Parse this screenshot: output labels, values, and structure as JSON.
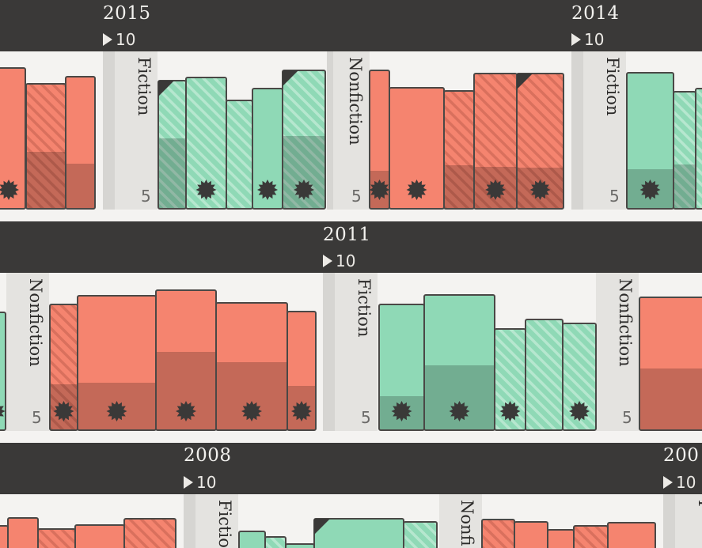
{
  "colors": {
    "fiction": "#8fd9b6",
    "fiction_dark": "#6faa90",
    "nonfiction": "#f5846f",
    "nonfiction_dark": "#c4695b",
    "stroke": "#4a4846",
    "band": "#3a3938",
    "shelf": "#e4e3e0"
  },
  "chart_data": {
    "type": "bar",
    "scale_label": "10",
    "tick_label": "5",
    "rows": [
      {
        "years": [
          {
            "label": "2015",
            "ten": "10"
          },
          {
            "label": "2014",
            "ten": "10"
          }
        ],
        "shelves": [
          {
            "genre": "",
            "tick": ""
          },
          {
            "genre": "Fiction",
            "tick": "5"
          },
          {
            "genre": "Nonfiction",
            "tick": "5"
          },
          {
            "genre": "Fiction",
            "tick": "5"
          }
        ]
      },
      {
        "years": [
          {
            "label": "2011",
            "ten": "10"
          }
        ],
        "shelves": [
          {
            "genre": "Nonfiction",
            "tick": "5"
          },
          {
            "genre": "Fiction",
            "tick": "5"
          },
          {
            "genre": "Nonfiction",
            "tick": "5"
          }
        ]
      },
      {
        "years": [
          {
            "label": "2008",
            "ten": "10"
          },
          {
            "label": "200",
            "ten": "10"
          }
        ],
        "shelves": [
          {
            "genre": "Fictio",
            "tick": ""
          },
          {
            "genre": "Nonfi",
            "tick": ""
          },
          {
            "genre": "F",
            "tick": ""
          }
        ]
      }
    ]
  }
}
